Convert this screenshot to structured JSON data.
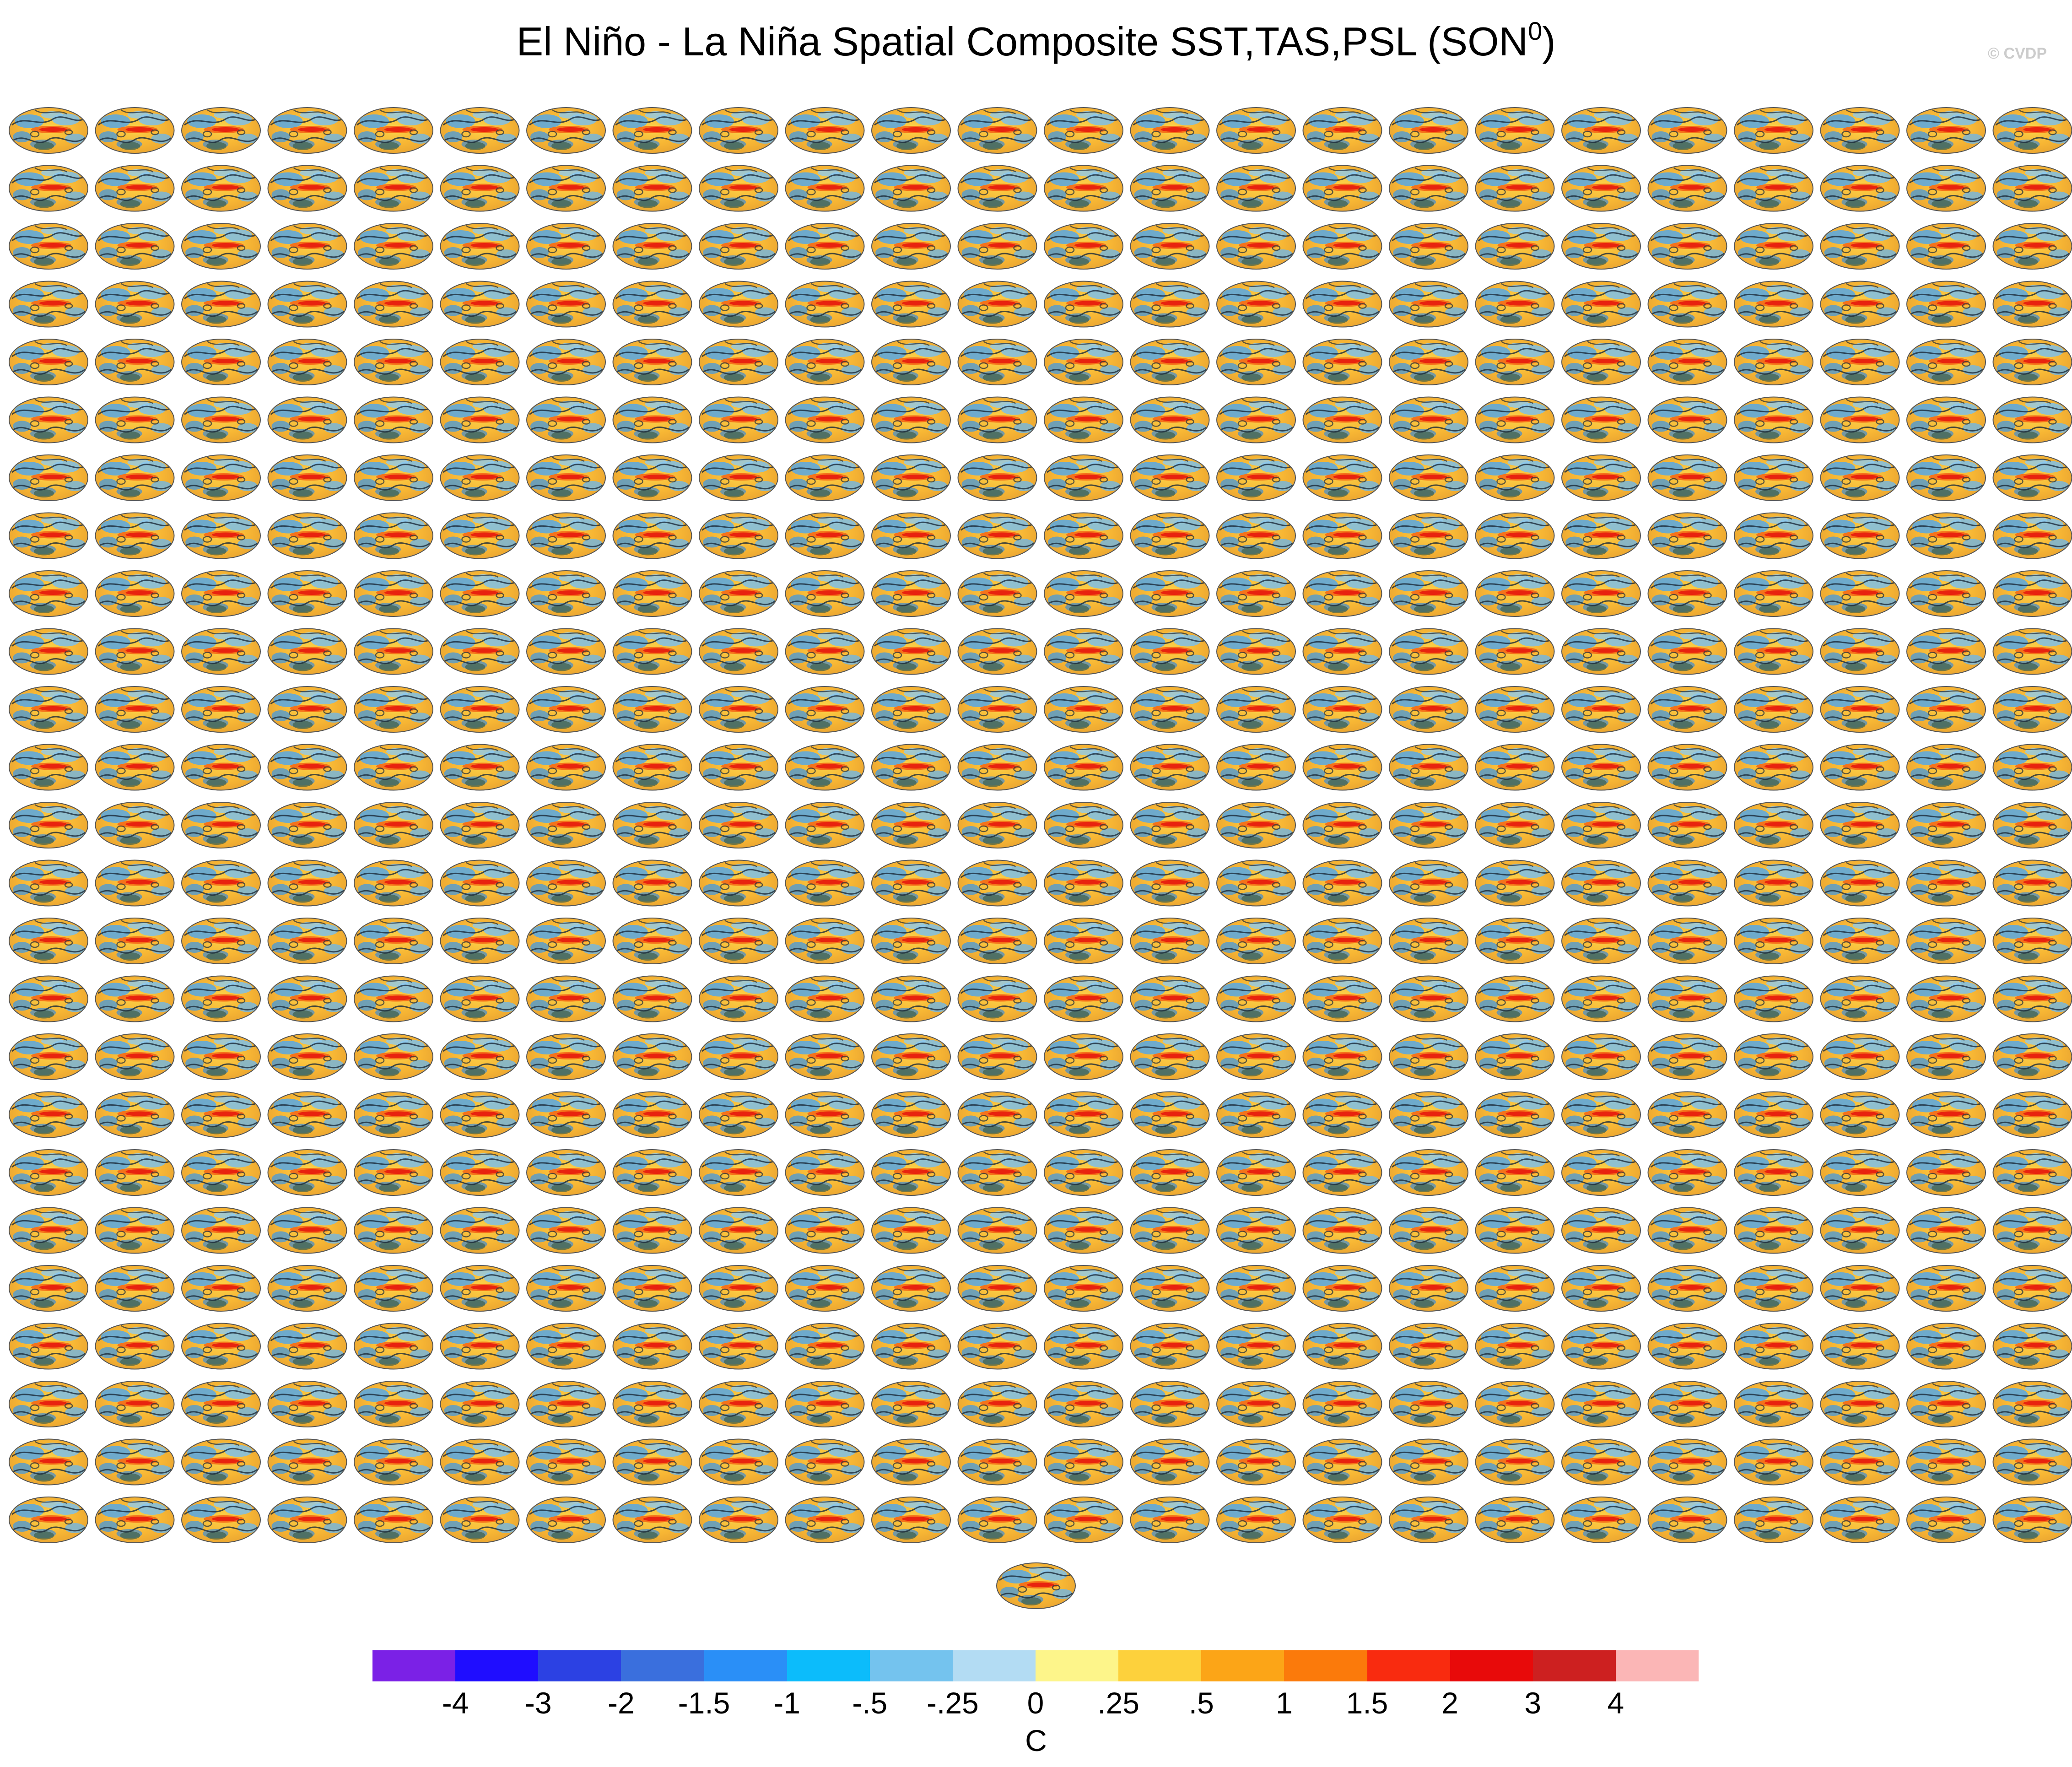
{
  "title": {
    "main": "El Niño - La Niña Spatial Composite SST,TAS,PSL (SON",
    "superscript": "0",
    "close": ")"
  },
  "watermark": "© CVDP",
  "panels": {
    "rows": 25,
    "columns": 24,
    "extra_bottom_panels": 1
  },
  "colorbar": {
    "colors": [
      "#7b21e6",
      "#1f0dff",
      "#2c41e3",
      "#3a6fdd",
      "#2a8ff7",
      "#0cbcfb",
      "#74c3ee",
      "#b3dcf3",
      "#fdf58a",
      "#fdd13c",
      "#fca517",
      "#fb7a0b",
      "#f92b0f",
      "#e80a0a",
      "#cd2020",
      "#fbb6b6"
    ],
    "labels": [
      "-4",
      "-3",
      "-2",
      "-1.5",
      "-1",
      "-.5",
      "-.25",
      "0",
      ".25",
      ".5",
      "1",
      "1.5",
      "2",
      "3",
      "4"
    ],
    "units": "C"
  }
}
